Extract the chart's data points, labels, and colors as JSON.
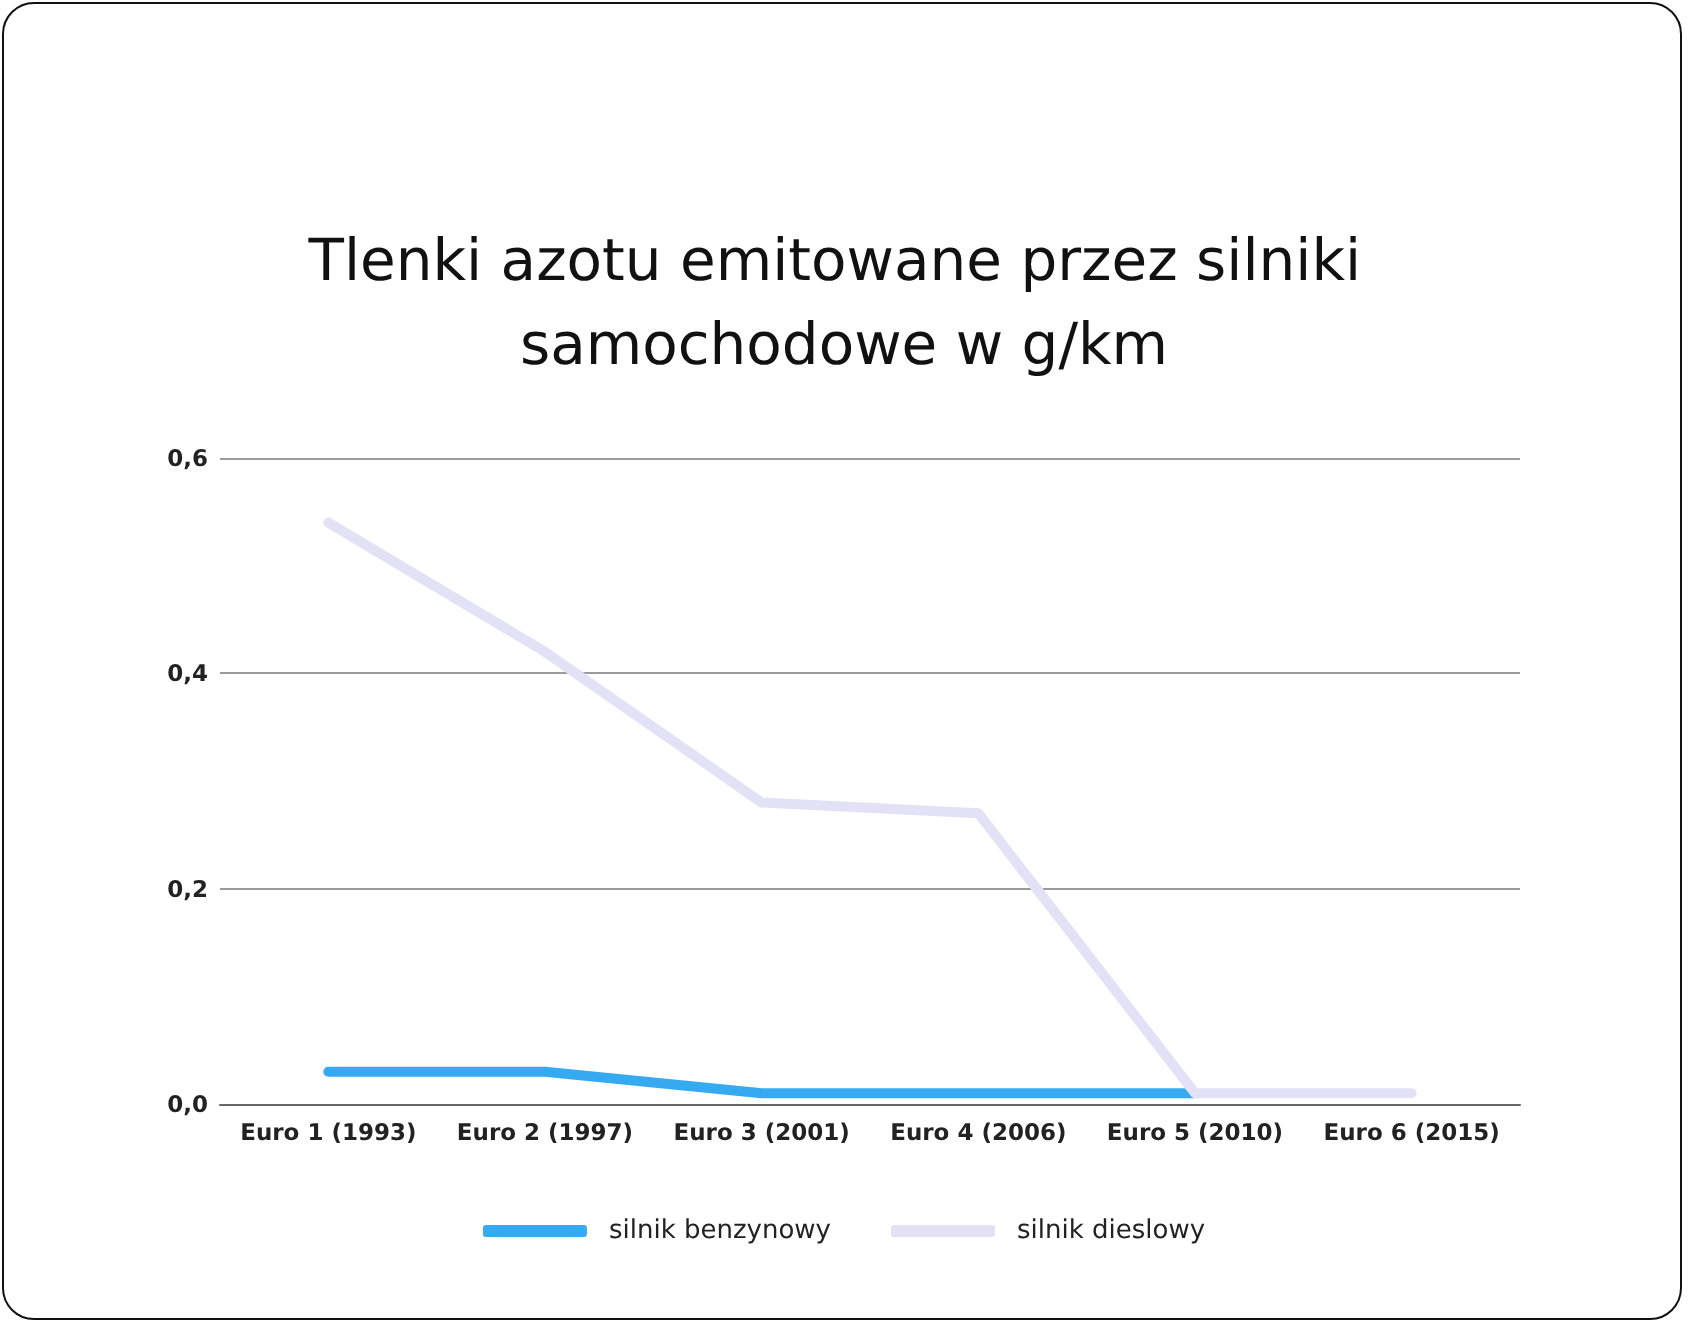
{
  "chart_data": {
    "type": "line",
    "title": "Tlenki azotu emitowane przez silniki samochodowe w g/km",
    "categories": [
      "Euro 1 (1993)",
      "Euro 2 (1997)",
      "Euro 3 (2001)",
      "Euro 4 (2006)",
      "Euro 5 (2010)",
      "Euro 6 (2015)"
    ],
    "series": [
      {
        "name": "silnik benzynowy",
        "color": "#36aaf0",
        "values": [
          0.03,
          0.03,
          0.01,
          0.01,
          0.01,
          null
        ]
      },
      {
        "name": "silnik dieslowy",
        "color": "#e3e1f6",
        "values": [
          0.54,
          0.42,
          0.28,
          0.27,
          0.01,
          0.01
        ]
      }
    ],
    "ylim": [
      0,
      0.6
    ],
    "yticks": [
      {
        "value": 0,
        "label": "0,0"
      },
      {
        "value": 0.2,
        "label": "0,2"
      },
      {
        "value": 0.4,
        "label": "0,4"
      },
      {
        "value": 0.6,
        "label": "0,6"
      }
    ],
    "grid": "y",
    "legend": "bottom",
    "marker": "none",
    "line_style": "solid"
  }
}
